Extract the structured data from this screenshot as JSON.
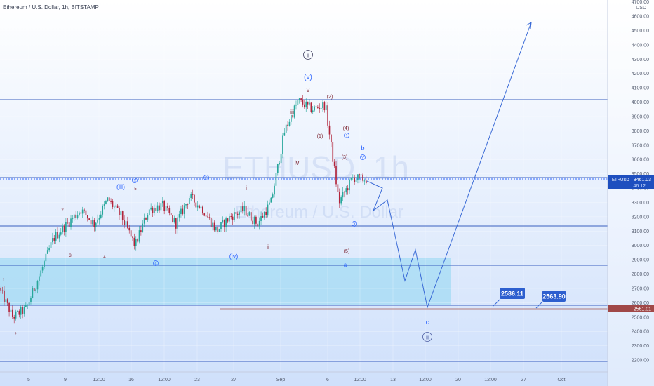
{
  "header": {
    "symbol_title": "Ethereum / U.S. Dollar, 1h, BITSTAMP",
    "currency": "USD"
  },
  "watermark": {
    "ticker": "ETHUSD, 1h",
    "name": "Ethereum / U.S. Dollar"
  },
  "price_axis": {
    "top_partial_label": "4700.00",
    "ticks": [
      "4600.00",
      "4500.00",
      "4400.00",
      "4300.00",
      "4200.00",
      "4100.00",
      "4000.00",
      "3900.00",
      "3800.00",
      "3700.00",
      "3600.00",
      "3500.00",
      "3400.00",
      "3300.00",
      "3200.00",
      "3100.00",
      "3000.00",
      "2900.00",
      "2800.00",
      "2700.00",
      "2600.00",
      "2500.00",
      "2400.00",
      "2300.00",
      "2200.00"
    ],
    "current_tag": {
      "symbol": "ETHUSD",
      "price": "3461.03",
      "countdown": "46:12"
    },
    "level_tag": "2561.01"
  },
  "time_axis": {
    "ticks": [
      "5",
      "9",
      "12:00",
      "16",
      "12:00",
      "23",
      "27",
      "Sep",
      "6",
      "12:00",
      "13",
      "12:00",
      "20",
      "12:00",
      "27",
      "Oct"
    ]
  },
  "callouts": [
    "2586.11",
    "2563.90"
  ],
  "wave_labels": {
    "circled": [
      "i",
      "ii",
      "1",
      "3",
      "4",
      "5",
      "X",
      "Y"
    ],
    "plain": [
      "(v)",
      "v",
      "(iii)",
      "iii",
      "iv",
      "(iv)",
      "i",
      "ii",
      "(2)",
      "(1)",
      "(4)",
      "(3)",
      "(5)",
      "b",
      "a",
      "c",
      "1",
      "2",
      "3",
      "4",
      "5"
    ]
  },
  "colors": {
    "accent": "#2962ff",
    "line": "#3a5fbf",
    "candle_up": "#26a69a",
    "candle_down": "#b2243a",
    "zone_fill": "#9fdaf3",
    "label_dark": "#7a1f2b",
    "current_tag_bg": "#1e4fbf",
    "level_tag_bg": "#a04848"
  },
  "chart_data": {
    "type": "candlestick",
    "title": "Ethereum / U.S. Dollar, 1h, BITSTAMP",
    "ylim": [
      2150,
      4700
    ],
    "y_scale": "linear",
    "current_price": 3461.03,
    "horizontal_levels": [
      4020,
      3470,
      3140,
      2860,
      2586.11,
      2563.9,
      2180
    ],
    "zone": {
      "from": 2586,
      "to": 2920
    },
    "approx_close_path": [
      2700,
      2500,
      2560,
      2800,
      3050,
      3150,
      3250,
      3150,
      3320,
      3200,
      3000,
      3250,
      3280,
      3150,
      3340,
      3250,
      3100,
      3200,
      3250,
      3150,
      3300,
      3800,
      4010,
      3950,
      3980,
      3300,
      3470,
      3461
    ],
    "projection": [
      3461,
      3380,
      3240,
      3400,
      2760,
      2960,
      2590,
      4570
    ]
  }
}
